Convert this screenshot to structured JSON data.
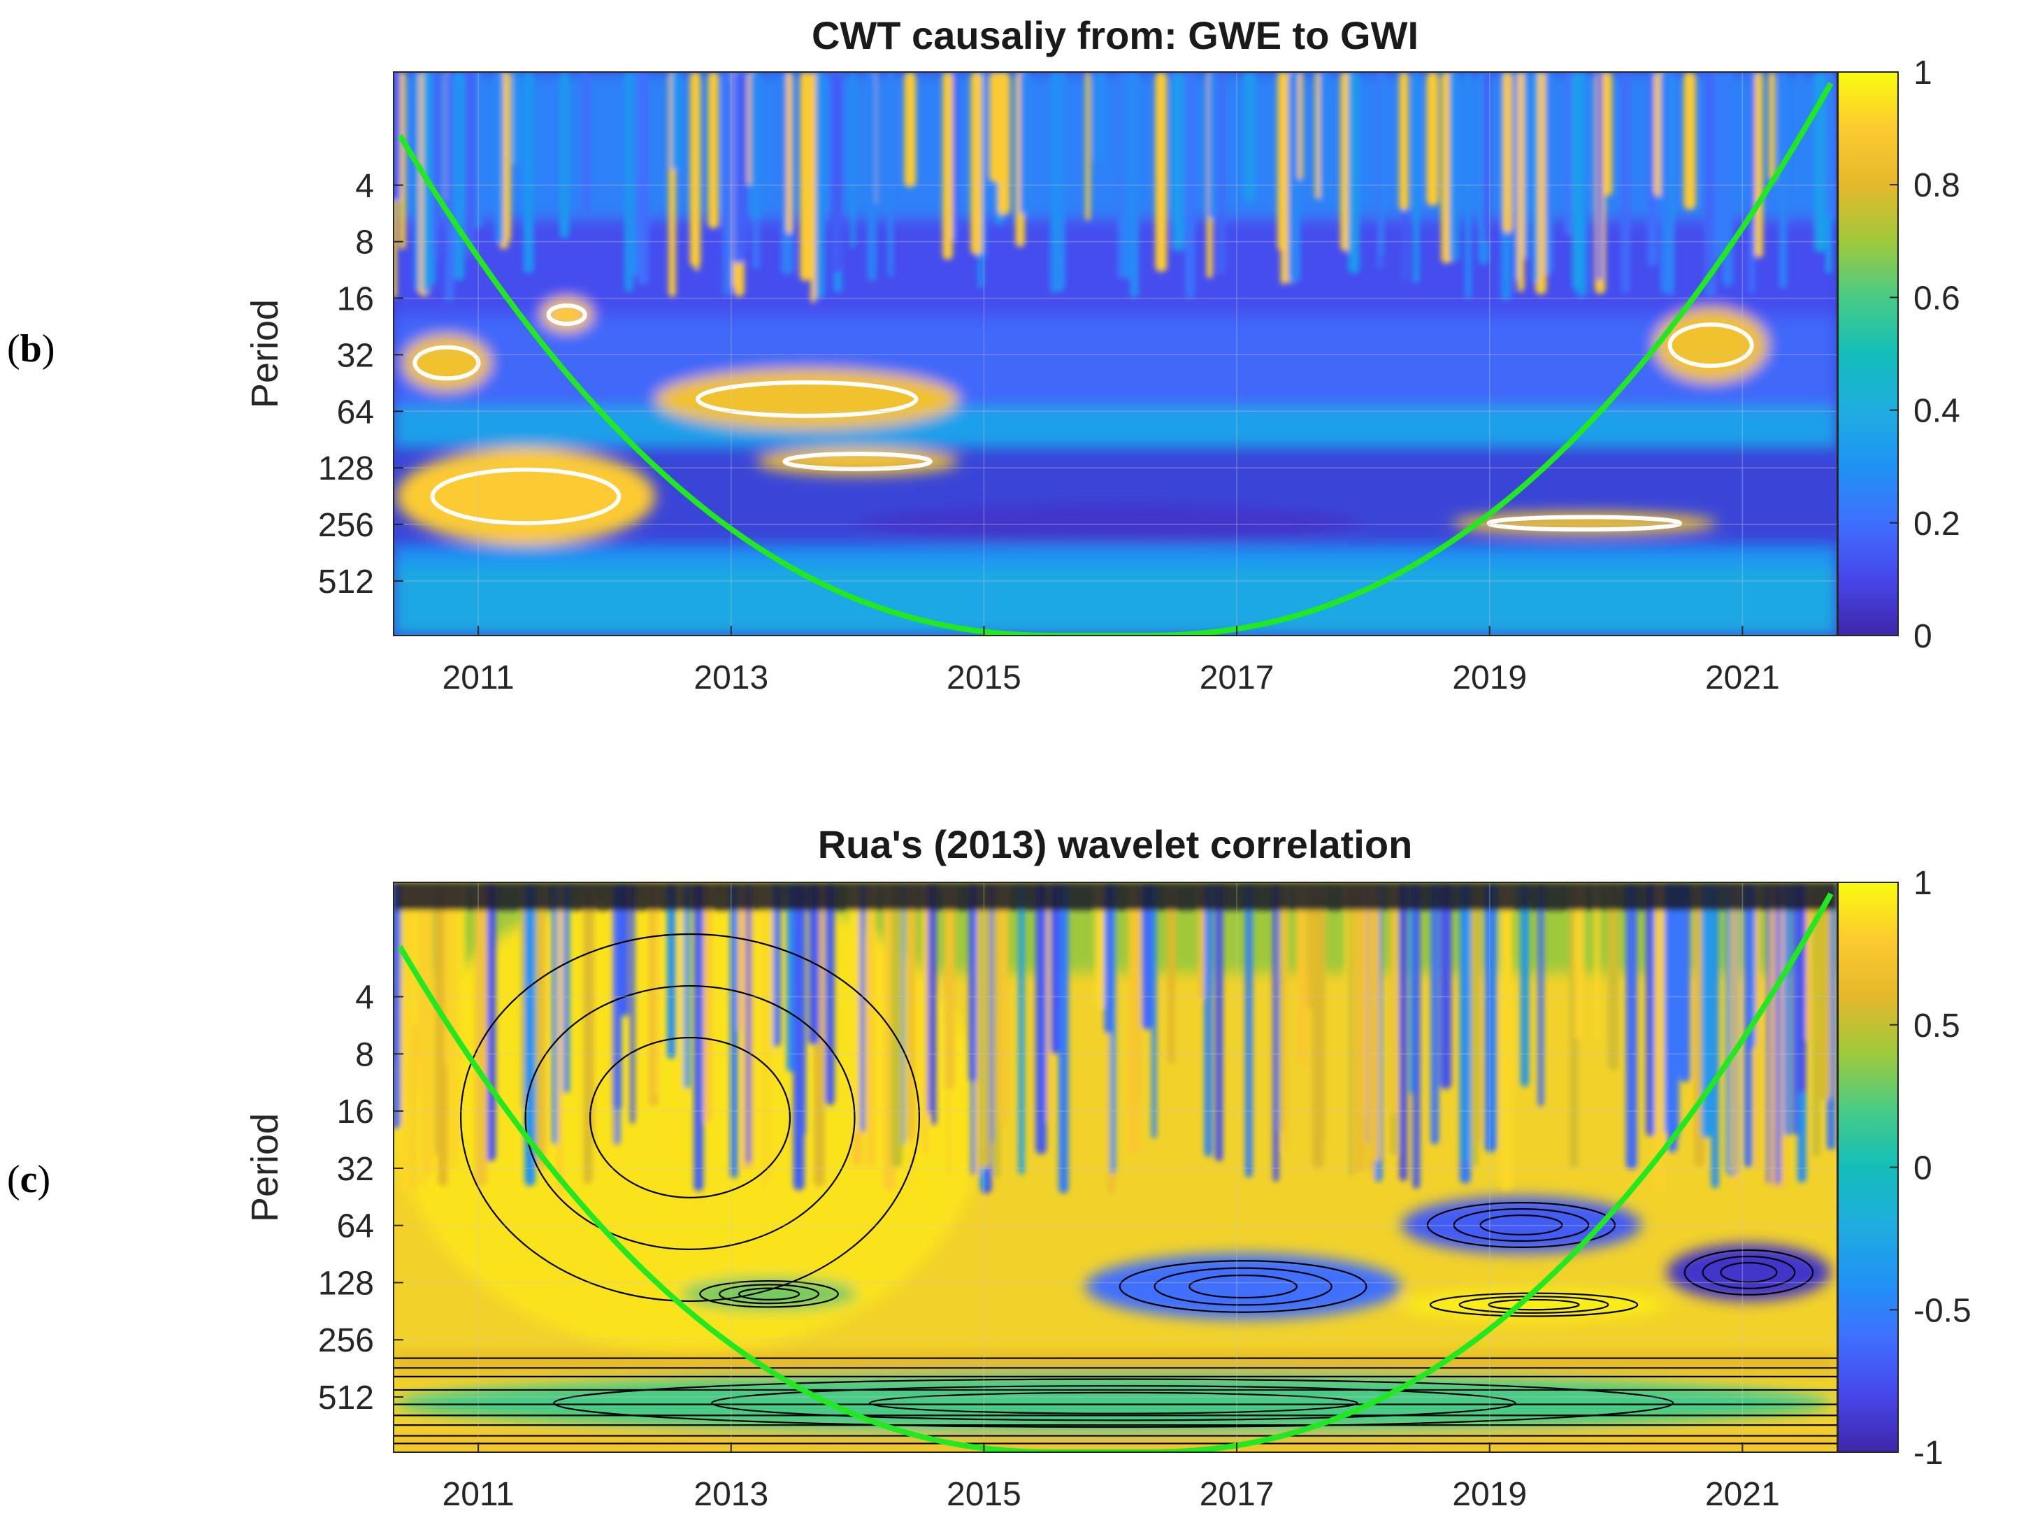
{
  "colors": {
    "parula_low": "#3e26a8",
    "parula_mid": "#13beb8",
    "parula_high": "#f9fb0e",
    "coi_line": "#22e822",
    "significance_contour": "#ffffff",
    "contour_line": "#000000"
  },
  "panel_labels": [
    {
      "open": "(",
      "letter": "b",
      "close": ")"
    },
    {
      "open": "(",
      "letter": "c",
      "close": ")"
    }
  ],
  "chart_data": [
    {
      "type": "heatmap",
      "title": "CWT causaliy from: GWE to GWI",
      "xlabel": "",
      "ylabel": "Period",
      "xlim": [
        2010.33,
        2021.75
      ],
      "x_ticks": [
        2011,
        2013,
        2015,
        2017,
        2019,
        2021
      ],
      "y_scale": "log2",
      "y_reversed": true,
      "ylim": [
        1,
        1000
      ],
      "y_ticks": [
        4,
        8,
        16,
        32,
        64,
        128,
        256,
        512
      ],
      "colorbar": {
        "min": 0,
        "max": 1,
        "ticks": [
          "0",
          "0.2",
          "0.4",
          "0.6",
          "0.8",
          "1"
        ],
        "colormap": "parula"
      },
      "grid": true,
      "cone_of_influence": "green parabola, apex near 2015.6-2016.2 at bottom",
      "regions": [
        {
          "x_range": [
            2010.35,
            2012.4
          ],
          "period_range": [
            100,
            330
          ],
          "value": 0.9
        },
        {
          "x_range": [
            2010.4,
            2011.1
          ],
          "period_range": [
            25,
            50
          ],
          "value": 0.85
        },
        {
          "x_range": [
            2012.4,
            2014.8
          ],
          "period_range": [
            38,
            80
          ],
          "value": 0.85
        },
        {
          "x_range": [
            2013.2,
            2014.8
          ],
          "period_range": [
            100,
            140
          ],
          "value": 0.85
        },
        {
          "x_range": [
            2018.7,
            2020.8
          ],
          "period_range": [
            220,
            290
          ],
          "value": 0.85
        },
        {
          "x_range": [
            2020.3,
            2021.2
          ],
          "period_range": [
            18,
            45
          ],
          "value": 0.85
        },
        {
          "x_range": [
            2011.5,
            2011.9
          ],
          "period_range": [
            16,
            24
          ],
          "value": 0.9
        },
        {
          "x_range": [
            2014.0,
            2018.0
          ],
          "period_range": [
            200,
            320
          ],
          "value": 0.05
        }
      ]
    },
    {
      "type": "heatmap",
      "title": "Rua's (2013) wavelet correlation",
      "xlabel": "",
      "ylabel": "Period",
      "xlim": [
        2010.33,
        2021.75
      ],
      "x_ticks": [
        2011,
        2013,
        2015,
        2017,
        2019,
        2021
      ],
      "y_scale": "log2",
      "y_reversed": true,
      "ylim": [
        1,
        1000
      ],
      "y_ticks": [
        4,
        8,
        16,
        32,
        64,
        128,
        256,
        512
      ],
      "colorbar": {
        "min": -1,
        "max": 1,
        "ticks": [
          "-1",
          "-0.5",
          "0",
          "0.5",
          "1"
        ],
        "colormap": "parula"
      },
      "grid": true,
      "contours": true,
      "cone_of_influence": "green parabola, apex near 2015.6-2016.2 at bottom",
      "regions": [
        {
          "x_range": [
            2010.35,
            2015.0
          ],
          "period_range": [
            1,
            300
          ],
          "value": 0.9
        },
        {
          "x_range": [
            2010.35,
            2021.7
          ],
          "period_range": [
            380,
            800
          ],
          "value": 0.2
        },
        {
          "x_range": [
            2015.8,
            2018.3
          ],
          "period_range": [
            90,
            200
          ],
          "value": -0.6
        },
        {
          "x_range": [
            2018.3,
            2020.2
          ],
          "period_range": [
            45,
            90
          ],
          "value": -0.7
        },
        {
          "x_range": [
            2020.4,
            2021.7
          ],
          "period_range": [
            80,
            160
          ],
          "value": -0.9
        },
        {
          "x_range": [
            2018.3,
            2020.4
          ],
          "period_range": [
            140,
            200
          ],
          "value": 0.95
        },
        {
          "x_range": [
            2012.6,
            2014.0
          ],
          "period_range": [
            120,
            180
          ],
          "value": 0.3
        }
      ]
    }
  ]
}
